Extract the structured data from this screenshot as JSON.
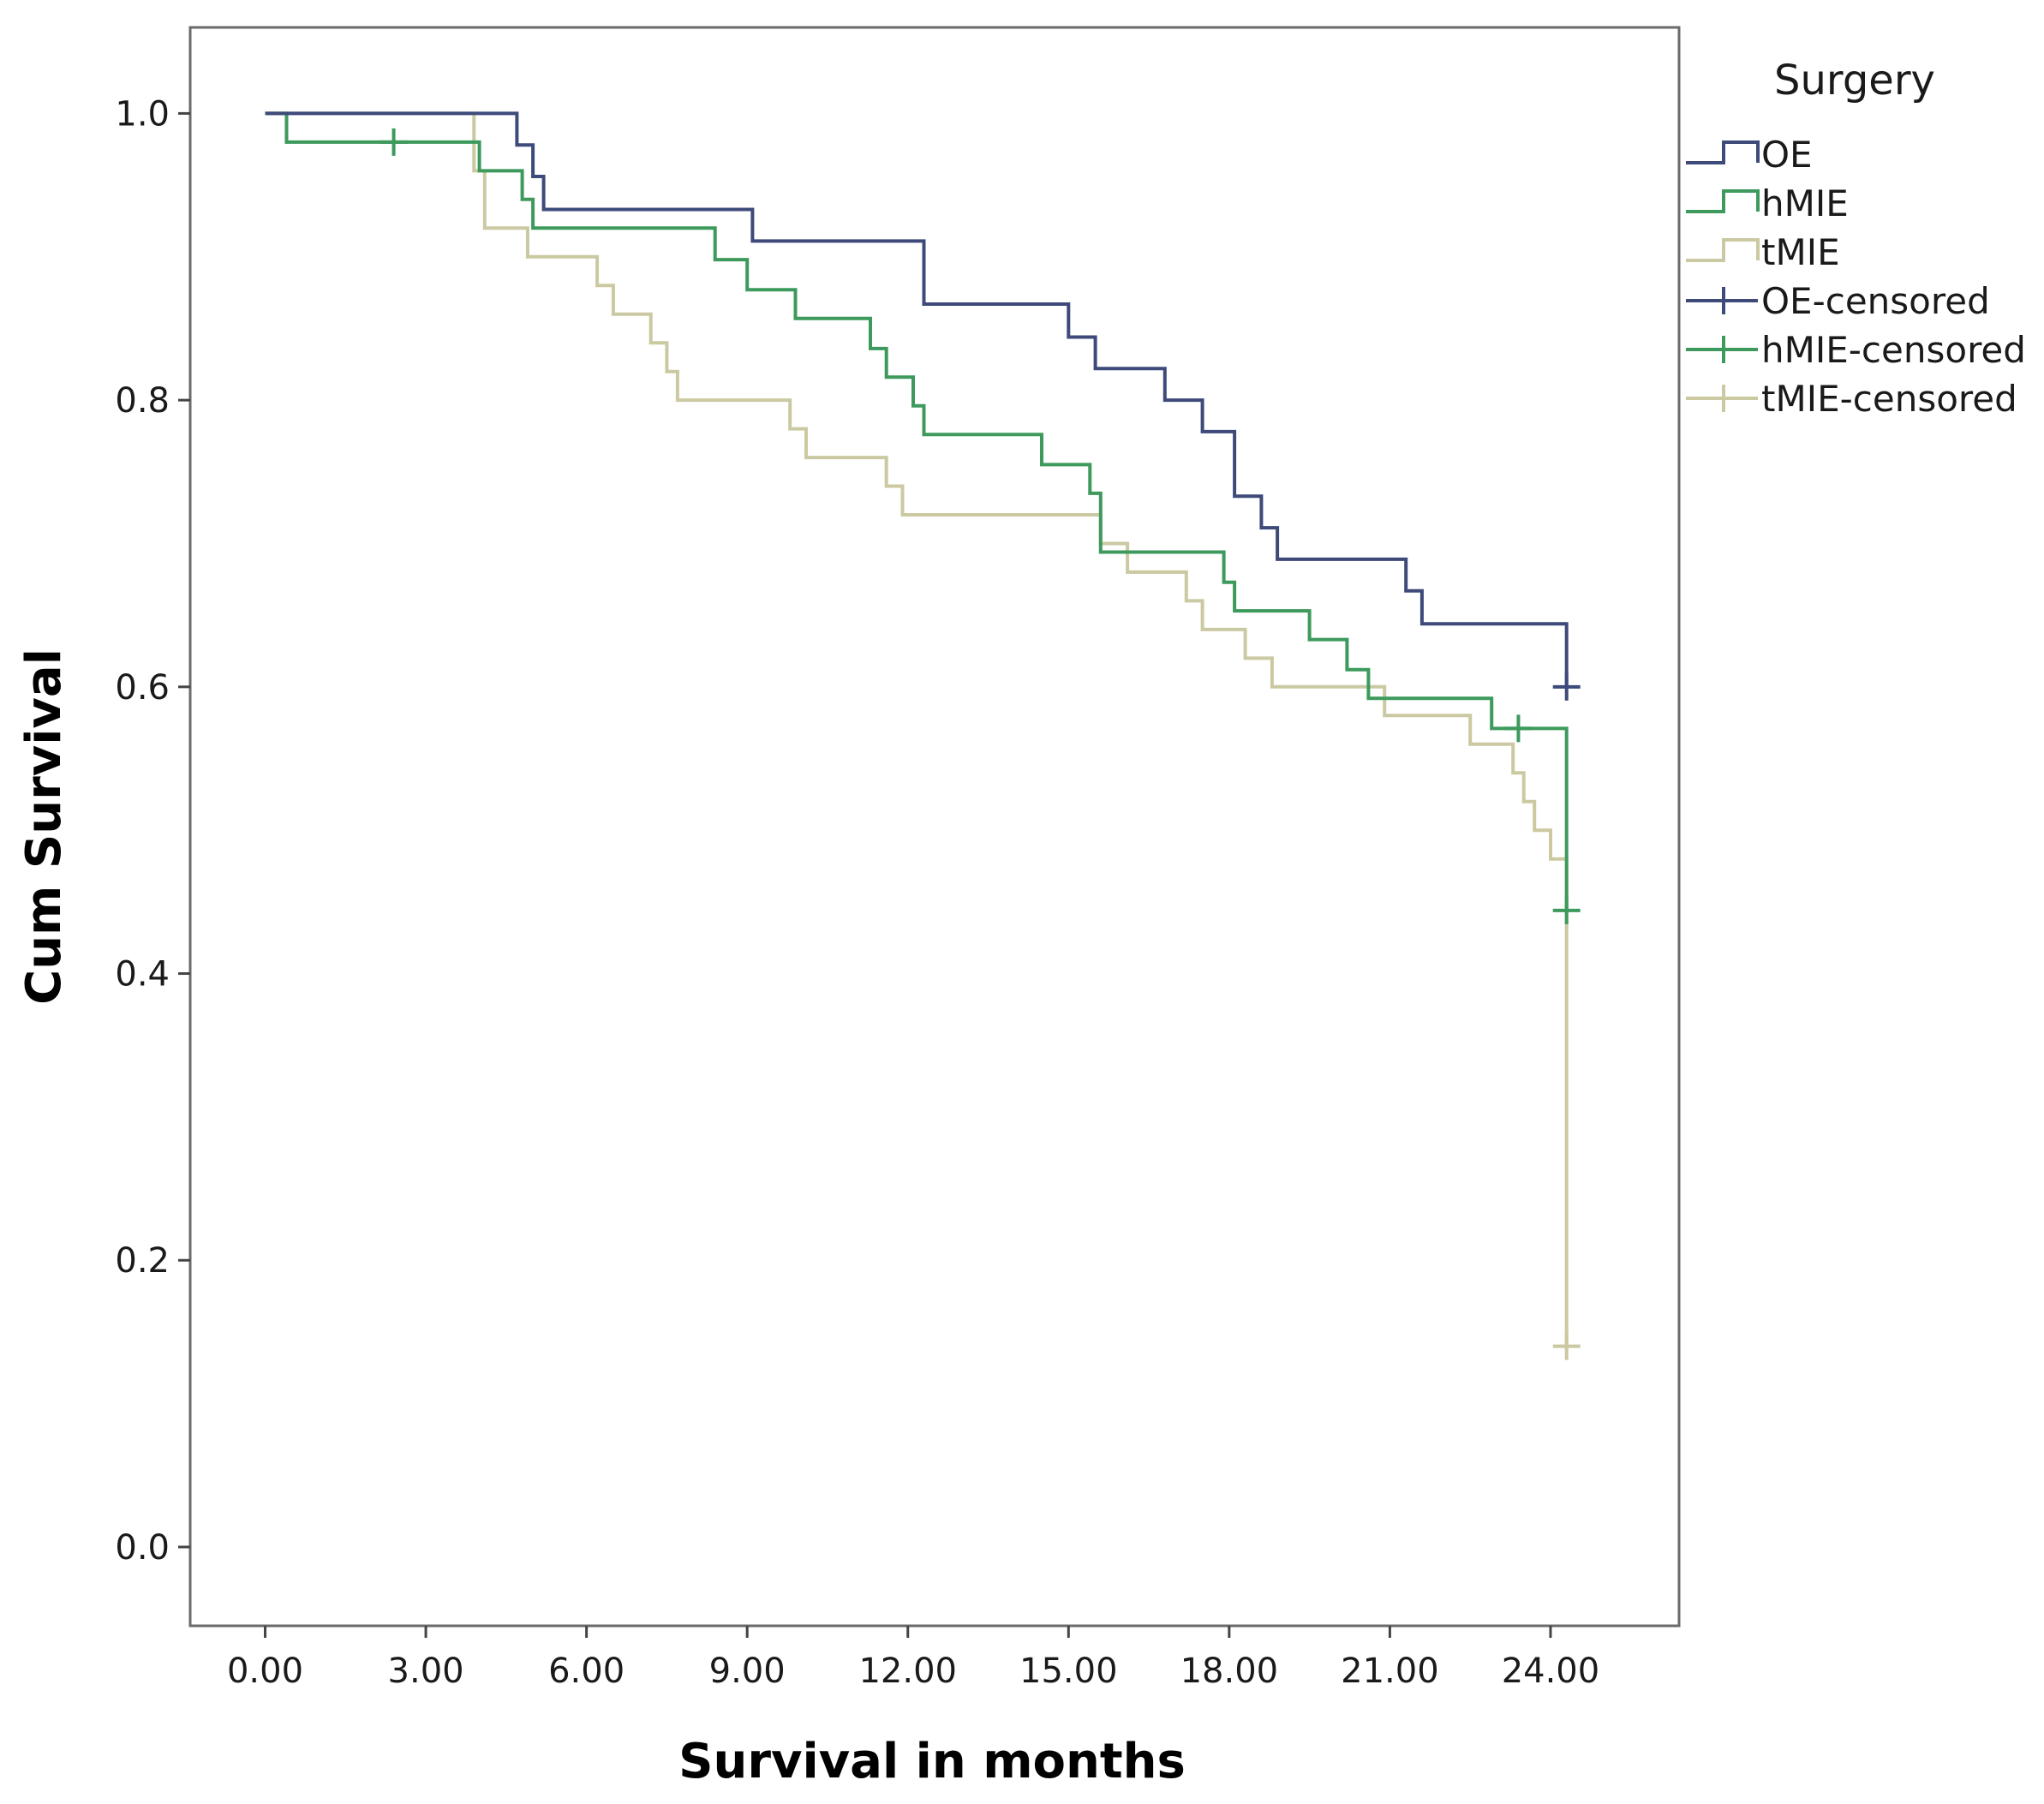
{
  "chart_data": {
    "type": "line",
    "subtype": "kaplan-meier step",
    "xlabel": "Survival in months",
    "ylabel": "Cum Survival",
    "xlim": [
      -1.4,
      26.4
    ],
    "ylim": [
      -0.055,
      1.06
    ],
    "xticks": [
      0,
      3,
      6,
      9,
      12,
      15,
      18,
      21,
      24
    ],
    "xtick_labels": [
      "0.00",
      "3.00",
      "6.00",
      "9.00",
      "12.00",
      "15.00",
      "18.00",
      "21.00",
      "24.00"
    ],
    "yticks": [
      0,
      0.2,
      0.4,
      0.6,
      0.8,
      1.0
    ],
    "ytick_labels": [
      "0.0",
      "0.2",
      "0.4",
      "0.6",
      "0.8",
      "1.0"
    ],
    "grid": false,
    "legend": {
      "title": "Surgery",
      "placement": "right",
      "entries": [
        "OE",
        "hMIE",
        "tMIE",
        "OE-censored",
        "hMIE-censored",
        "tMIE-censored"
      ]
    },
    "series": [
      {
        "name": "OE",
        "color": "#3d4a7a",
        "x": [
          0,
          4.7,
          5.0,
          5.2,
          9.1,
          12.3,
          15.0,
          15.5,
          16.8,
          17.5,
          18.1,
          18.6,
          18.9,
          21.3,
          21.6,
          24.3,
          24.3
        ],
        "y": [
          1.0,
          0.978,
          0.956,
          0.933,
          0.911,
          0.867,
          0.844,
          0.822,
          0.8,
          0.778,
          0.733,
          0.711,
          0.689,
          0.667,
          0.644,
          0.6,
          0.6
        ],
        "censored": [
          {
            "x": 24.3,
            "y": 0.6
          }
        ]
      },
      {
        "name": "hMIE",
        "color": "#3d9a5c",
        "x": [
          0,
          0.4,
          4.0,
          4.8,
          5.0,
          8.4,
          9.0,
          9.9,
          11.3,
          11.6,
          12.1,
          12.3,
          14.5,
          15.4,
          15.6,
          17.9,
          18.1,
          19.5,
          20.2,
          20.6,
          20.9,
          22.9,
          24.3,
          24.3
        ],
        "y": [
          1.0,
          0.98,
          0.96,
          0.94,
          0.92,
          0.898,
          0.877,
          0.857,
          0.836,
          0.816,
          0.796,
          0.776,
          0.755,
          0.735,
          0.694,
          0.673,
          0.653,
          0.633,
          0.612,
          0.592,
          0.592,
          0.571,
          0.571,
          0.444
        ],
        "censored": [
          {
            "x": 2.4,
            "y": 0.98
          },
          {
            "x": 23.4,
            "y": 0.571
          },
          {
            "x": 24.3,
            "y": 0.444
          }
        ]
      },
      {
        "name": "tMIE",
        "color": "#cbc9a2",
        "x": [
          0,
          3.9,
          4.1,
          4.9,
          6.2,
          6.5,
          7.2,
          7.5,
          7.7,
          9.8,
          10.1,
          11.6,
          11.9,
          15.6,
          16.1,
          17.2,
          17.5,
          18.3,
          18.8,
          19.1,
          20.9,
          21.3,
          22.5,
          23.3,
          23.5,
          23.7,
          24.0,
          24.3,
          24.3
        ],
        "y": [
          1.0,
          0.96,
          0.92,
          0.9,
          0.88,
          0.86,
          0.84,
          0.82,
          0.8,
          0.78,
          0.76,
          0.74,
          0.72,
          0.7,
          0.68,
          0.66,
          0.64,
          0.62,
          0.6,
          0.6,
          0.58,
          0.58,
          0.56,
          0.54,
          0.52,
          0.5,
          0.48,
          0.48,
          0.14
        ],
        "censored": [
          {
            "x": 24.3,
            "y": 0.14
          }
        ]
      }
    ]
  }
}
